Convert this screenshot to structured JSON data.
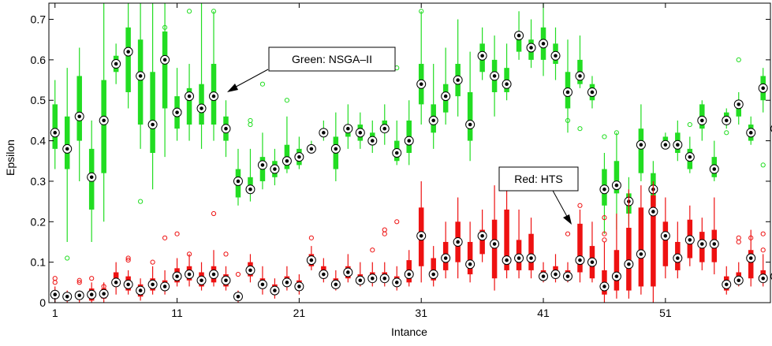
{
  "chart_data": {
    "type": "boxplot",
    "xlabel": "Intance",
    "ylabel": "Epsilon",
    "xlim": [
      0.5,
      59.6
    ],
    "ylim": [
      0,
      0.74
    ],
    "x_ticks": [
      1,
      11,
      21,
      31,
      41,
      51
    ],
    "y_ticks": [
      0,
      0.1,
      0.2,
      0.3,
      0.4,
      0.5,
      0.6,
      0.7
    ],
    "grid": false,
    "annotations": [
      {
        "text": "Green: NSGA–II",
        "points_to": "series-0"
      },
      {
        "text": "Red: HTS",
        "points_to": "series-1"
      }
    ],
    "series": [
      {
        "color": "#22dd22",
        "medians": [
          0.42,
          0.38,
          0.46,
          0.31,
          0.45,
          0.59,
          0.62,
          0.56,
          0.44,
          0.6,
          0.47,
          0.51,
          0.48,
          0.51,
          0.43,
          0.3,
          0.28,
          0.34,
          0.33,
          0.35,
          0.36,
          0.38,
          0.42,
          0.38,
          0.43,
          0.42,
          0.4,
          0.43,
          0.37,
          0.4,
          0.54,
          0.45,
          0.51,
          0.55,
          0.44,
          0.61,
          0.56,
          0.54,
          0.66,
          0.63,
          0.64,
          0.61,
          0.52,
          0.56,
          0.52,
          0.28,
          0.29,
          0.25,
          0.39,
          0.28,
          0.39,
          0.39,
          0.36,
          0.45,
          0.33,
          0.45,
          0.49,
          0.42,
          0.53,
          0.43
        ],
        "q1": [
          0.38,
          0.33,
          0.4,
          0.23,
          0.32,
          0.57,
          0.52,
          0.44,
          0.37,
          0.48,
          0.43,
          0.44,
          0.44,
          0.44,
          0.4,
          0.26,
          0.27,
          0.3,
          0.31,
          0.33,
          0.34,
          0.37,
          0.41,
          0.33,
          0.41,
          0.4,
          0.39,
          0.42,
          0.35,
          0.37,
          0.49,
          0.42,
          0.47,
          0.51,
          0.4,
          0.57,
          0.52,
          0.52,
          0.62,
          0.6,
          0.6,
          0.59,
          0.48,
          0.54,
          0.5,
          0.24,
          0.27,
          0.22,
          0.32,
          0.24,
          0.38,
          0.37,
          0.33,
          0.43,
          0.31,
          0.44,
          0.46,
          0.4,
          0.5,
          0.4
        ],
        "q3": [
          0.49,
          0.46,
          0.56,
          0.38,
          0.55,
          0.61,
          0.68,
          0.65,
          0.57,
          0.67,
          0.51,
          0.53,
          0.54,
          0.59,
          0.46,
          0.33,
          0.31,
          0.36,
          0.35,
          0.39,
          0.38,
          0.38,
          0.43,
          0.41,
          0.44,
          0.44,
          0.42,
          0.45,
          0.4,
          0.45,
          0.59,
          0.49,
          0.54,
          0.59,
          0.52,
          0.64,
          0.6,
          0.58,
          0.67,
          0.65,
          0.68,
          0.64,
          0.57,
          0.6,
          0.54,
          0.33,
          0.35,
          0.27,
          0.43,
          0.32,
          0.41,
          0.42,
          0.38,
          0.49,
          0.36,
          0.47,
          0.5,
          0.44,
          0.56,
          0.47
        ],
        "whisker_low": [
          0.33,
          0.15,
          0.3,
          0.15,
          0.2,
          0.54,
          0.48,
          0.38,
          0.28,
          0.36,
          0.4,
          0.4,
          0.38,
          0.4,
          0.36,
          0.24,
          0.25,
          0.28,
          0.29,
          0.32,
          0.33,
          0.37,
          0.4,
          0.3,
          0.38,
          0.38,
          0.37,
          0.39,
          0.34,
          0.34,
          0.44,
          0.38,
          0.44,
          0.46,
          0.35,
          0.55,
          0.46,
          0.5,
          0.6,
          0.58,
          0.56,
          0.55,
          0.42,
          0.53,
          0.48,
          0.17,
          0.18,
          0.19,
          0.3,
          0.2,
          0.38,
          0.35,
          0.32,
          0.4,
          0.3,
          0.43,
          0.44,
          0.39,
          0.47,
          0.38
        ],
        "whisker_high": [
          0.55,
          0.58,
          0.63,
          0.45,
          0.74,
          0.64,
          0.74,
          0.74,
          0.74,
          0.74,
          0.58,
          0.59,
          0.74,
          0.72,
          0.5,
          0.38,
          0.38,
          0.42,
          0.38,
          0.46,
          0.41,
          0.4,
          0.45,
          0.47,
          0.49,
          0.47,
          0.45,
          0.49,
          0.45,
          0.5,
          0.72,
          0.59,
          0.63,
          0.7,
          0.62,
          0.68,
          0.66,
          0.64,
          0.72,
          0.7,
          0.74,
          0.68,
          0.65,
          0.66,
          0.56,
          0.37,
          0.42,
          0.31,
          0.49,
          0.35,
          0.42,
          0.45,
          0.41,
          0.5,
          0.4,
          0.48,
          0.52,
          0.46,
          0.58,
          0.5
        ],
        "outliers": [
          [
            2,
            0.11
          ],
          [
            8,
            0.25
          ],
          [
            10,
            0.68
          ],
          [
            12,
            0.72
          ],
          [
            14,
            0.72
          ],
          [
            17,
            0.45
          ],
          [
            17,
            0.44
          ],
          [
            18,
            0.54
          ],
          [
            20,
            0.5
          ],
          [
            17,
            0.3
          ],
          [
            31,
            0.72
          ],
          [
            29,
            0.58
          ],
          [
            43,
            0.45
          ],
          [
            44,
            0.43
          ],
          [
            46,
            0.41
          ],
          [
            47,
            0.42
          ],
          [
            53,
            0.44
          ],
          [
            56,
            0.42
          ],
          [
            57,
            0.6
          ],
          [
            59,
            0.34
          ]
        ]
      },
      {
        "color": "#ee1111",
        "medians": [
          0.02,
          0.015,
          0.018,
          0.02,
          0.022,
          0.05,
          0.045,
          0.03,
          0.045,
          0.04,
          0.065,
          0.07,
          0.055,
          0.07,
          0.055,
          0.015,
          0.08,
          0.045,
          0.03,
          0.05,
          0.04,
          0.105,
          0.07,
          0.045,
          0.075,
          0.055,
          0.06,
          0.06,
          0.05,
          0.07,
          0.165,
          0.07,
          0.11,
          0.15,
          0.095,
          0.165,
          0.145,
          0.105,
          0.11,
          0.11,
          0.065,
          0.07,
          0.065,
          0.105,
          0.1,
          0.04,
          0.065,
          0.095,
          0.12,
          0.225,
          0.165,
          0.11,
          0.155,
          0.145,
          0.145,
          0.045,
          0.055,
          0.11,
          0.06,
          0.065
        ],
        "q1": [
          0.01,
          0.01,
          0.01,
          0.005,
          0.01,
          0.04,
          0.03,
          0.015,
          0.03,
          0.03,
          0.05,
          0.055,
          0.04,
          0.05,
          0.04,
          0.005,
          0.065,
          0.035,
          0.02,
          0.04,
          0.03,
          0.09,
          0.06,
          0.035,
          0.06,
          0.045,
          0.05,
          0.05,
          0.04,
          0.05,
          0.09,
          0.055,
          0.08,
          0.1,
          0.07,
          0.12,
          0.06,
          0.08,
          0.08,
          0.08,
          0.055,
          0.06,
          0.055,
          0.075,
          0.06,
          0.02,
          0.03,
          0.03,
          0.04,
          0.04,
          0.09,
          0.08,
          0.11,
          0.1,
          0.1,
          0.03,
          0.045,
          0.06,
          0.05,
          0.04
        ],
        "q3": [
          0.03,
          0.02,
          0.025,
          0.035,
          0.035,
          0.075,
          0.065,
          0.045,
          0.06,
          0.055,
          0.085,
          0.09,
          0.075,
          0.09,
          0.07,
          0.025,
          0.1,
          0.06,
          0.045,
          0.065,
          0.055,
          0.12,
          0.09,
          0.06,
          0.09,
          0.07,
          0.075,
          0.075,
          0.065,
          0.105,
          0.235,
          0.11,
          0.15,
          0.2,
          0.15,
          0.18,
          0.205,
          0.23,
          0.155,
          0.17,
          0.08,
          0.09,
          0.08,
          0.195,
          0.14,
          0.08,
          0.13,
          0.185,
          0.235,
          0.265,
          0.2,
          0.15,
          0.205,
          0.175,
          0.18,
          0.065,
          0.075,
          0.13,
          0.08,
          0.09
        ],
        "whisker_low": [
          0.0,
          0.0,
          0.0,
          0.0,
          0.0,
          0.02,
          0.02,
          0.005,
          0.02,
          0.02,
          0.04,
          0.04,
          0.03,
          0.04,
          0.03,
          0.0,
          0.05,
          0.02,
          0.01,
          0.03,
          0.02,
          0.08,
          0.05,
          0.03,
          0.05,
          0.04,
          0.04,
          0.04,
          0.03,
          0.04,
          0.05,
          0.04,
          0.06,
          0.06,
          0.05,
          0.1,
          0.03,
          0.06,
          0.06,
          0.06,
          0.05,
          0.05,
          0.05,
          0.05,
          0.05,
          0.0,
          0.01,
          0.01,
          0.02,
          0.0,
          0.06,
          0.06,
          0.09,
          0.08,
          0.07,
          0.02,
          0.04,
          0.04,
          0.04,
          0.03
        ],
        "whisker_high": [
          0.04,
          0.03,
          0.03,
          0.05,
          0.05,
          0.1,
          0.08,
          0.06,
          0.09,
          0.08,
          0.11,
          0.12,
          0.1,
          0.13,
          0.09,
          0.03,
          0.12,
          0.09,
          0.06,
          0.09,
          0.07,
          0.14,
          0.11,
          0.08,
          0.12,
          0.1,
          0.1,
          0.1,
          0.09,
          0.13,
          0.3,
          0.14,
          0.2,
          0.26,
          0.2,
          0.23,
          0.29,
          0.29,
          0.23,
          0.21,
          0.1,
          0.12,
          0.1,
          0.23,
          0.2,
          0.15,
          0.22,
          0.28,
          0.29,
          0.3,
          0.26,
          0.2,
          0.24,
          0.21,
          0.26,
          0.09,
          0.1,
          0.18,
          0.12,
          0.17
        ],
        "outliers": [
          [
            1,
            0.06
          ],
          [
            1,
            0.05
          ],
          [
            3,
            0.05
          ],
          [
            3,
            0.055
          ],
          [
            4,
            0.06
          ],
          [
            5,
            0.04
          ],
          [
            7,
            0.11
          ],
          [
            7,
            0.105
          ],
          [
            9,
            0.1
          ],
          [
            10,
            0.16
          ],
          [
            11,
            0.17
          ],
          [
            12,
            0.12
          ],
          [
            14,
            0.22
          ],
          [
            15,
            0.12
          ],
          [
            16,
            0.07
          ],
          [
            22,
            0.16
          ],
          [
            27,
            0.13
          ],
          [
            28,
            0.18
          ],
          [
            28,
            0.17
          ],
          [
            29,
            0.2
          ],
          [
            43,
            0.17
          ],
          [
            44,
            0.24
          ],
          [
            46,
            0.21
          ],
          [
            46,
            0.17
          ],
          [
            46,
            0.155
          ],
          [
            57,
            0.16
          ],
          [
            57,
            0.15
          ],
          [
            58,
            0.16
          ],
          [
            59,
            0.17
          ],
          [
            59,
            0.13
          ]
        ]
      }
    ]
  }
}
